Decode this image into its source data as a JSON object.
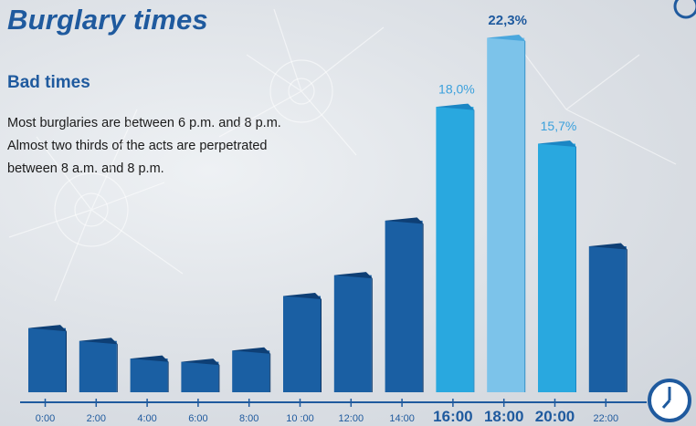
{
  "title": "Burglary times",
  "subtitle": "Bad times",
  "description": "Most burglaries are between 6 p.m. and 8 p.m. Almost two thirds of the acts are perpetrated between 8 a.m. and 8 p.m.",
  "chart_data": {
    "type": "bar",
    "categories": [
      "0:00",
      "2:00",
      "4:00",
      "6:00",
      "8:00",
      "10 :00",
      "12:00",
      "14:00",
      "16:00",
      "18:00",
      "20:00",
      "22:00"
    ],
    "values": [
      4.2,
      3.4,
      2.3,
      2.1,
      2.8,
      6.2,
      7.5,
      10.9,
      18.0,
      22.3,
      15.7,
      9.3
    ],
    "data_labels": [
      "",
      "",
      "",
      "",
      "",
      "",
      "",
      "",
      "18,0%",
      "22,3%",
      "15,7%",
      ""
    ],
    "highlighted": [
      "16:00",
      "18:00",
      "20:00"
    ],
    "ylim": [
      0,
      22.3
    ],
    "colors": {
      "normal_front": "#1a5fa3",
      "normal_top": "#0e3f75",
      "normal_side": "#0b3464",
      "highlight_front": "#29a8df",
      "highlight_top": "#1b86c4",
      "peak_front": "#7cc3ea",
      "peak_top": "#4aa7dd",
      "label_normal": "#1f5a9e",
      "label_highlight": "#3aa0dc"
    },
    "axis_icon": "clock-icon"
  }
}
